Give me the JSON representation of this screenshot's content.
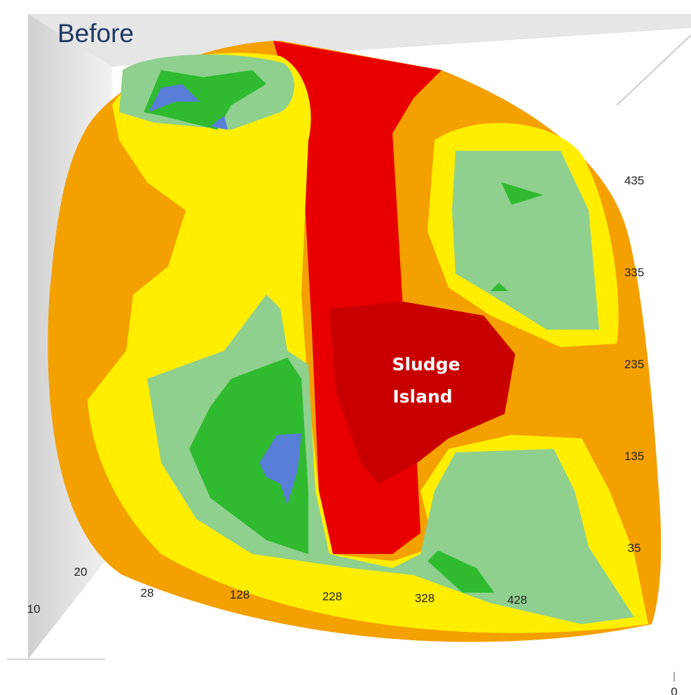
{
  "title": "Before",
  "annotation": [
    "Sludge",
    "Island"
  ],
  "axes": {
    "y_labels": [
      435,
      335,
      235,
      135,
      35
    ],
    "x_labels": [
      28,
      128,
      228,
      328,
      428
    ],
    "z_labels": [
      20,
      10,
      0
    ]
  }
}
